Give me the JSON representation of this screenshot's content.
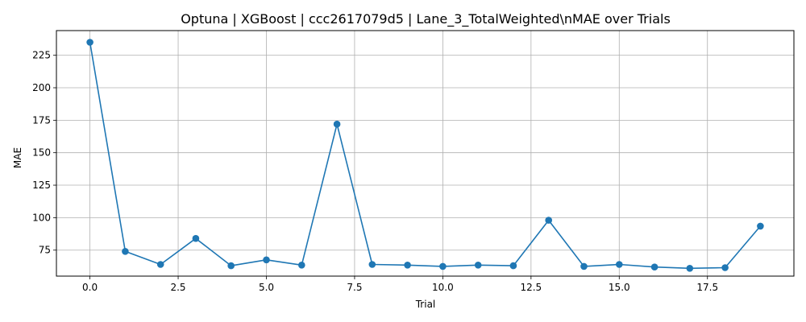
{
  "chart_data": {
    "type": "line",
    "title": "Optuna | XGBoost | ccc2617079d5 | Lane_3_TotalWeighted\\nMAE over Trials",
    "xlabel": "Trial",
    "ylabel": "MAE",
    "xlim": [
      -0.95,
      19.95
    ],
    "ylim": [
      55.0,
      244.0
    ],
    "xticks": [
      0.0,
      2.5,
      5.0,
      7.5,
      10.0,
      12.5,
      15.0,
      17.5
    ],
    "xtick_labels": [
      "0.0",
      "2.5",
      "5.0",
      "7.5",
      "10.0",
      "12.5",
      "15.0",
      "17.5"
    ],
    "yticks": [
      75,
      100,
      125,
      150,
      175,
      200,
      225
    ],
    "ytick_labels": [
      "75",
      "100",
      "125",
      "150",
      "175",
      "200",
      "225"
    ],
    "grid": true,
    "series": [
      {
        "color": "#1f77b4",
        "marker": "circle",
        "x": [
          0,
          1,
          2,
          3,
          4,
          5,
          6,
          7,
          8,
          9,
          10,
          11,
          12,
          13,
          14,
          15,
          16,
          17,
          18,
          19
        ],
        "values": [
          235.0,
          74.0,
          64.0,
          84.0,
          63.0,
          67.5,
          63.5,
          172.0,
          64.0,
          63.5,
          62.5,
          63.5,
          63.0,
          98.0,
          62.5,
          64.0,
          62.0,
          61.0,
          61.5,
          93.5
        ]
      }
    ]
  }
}
